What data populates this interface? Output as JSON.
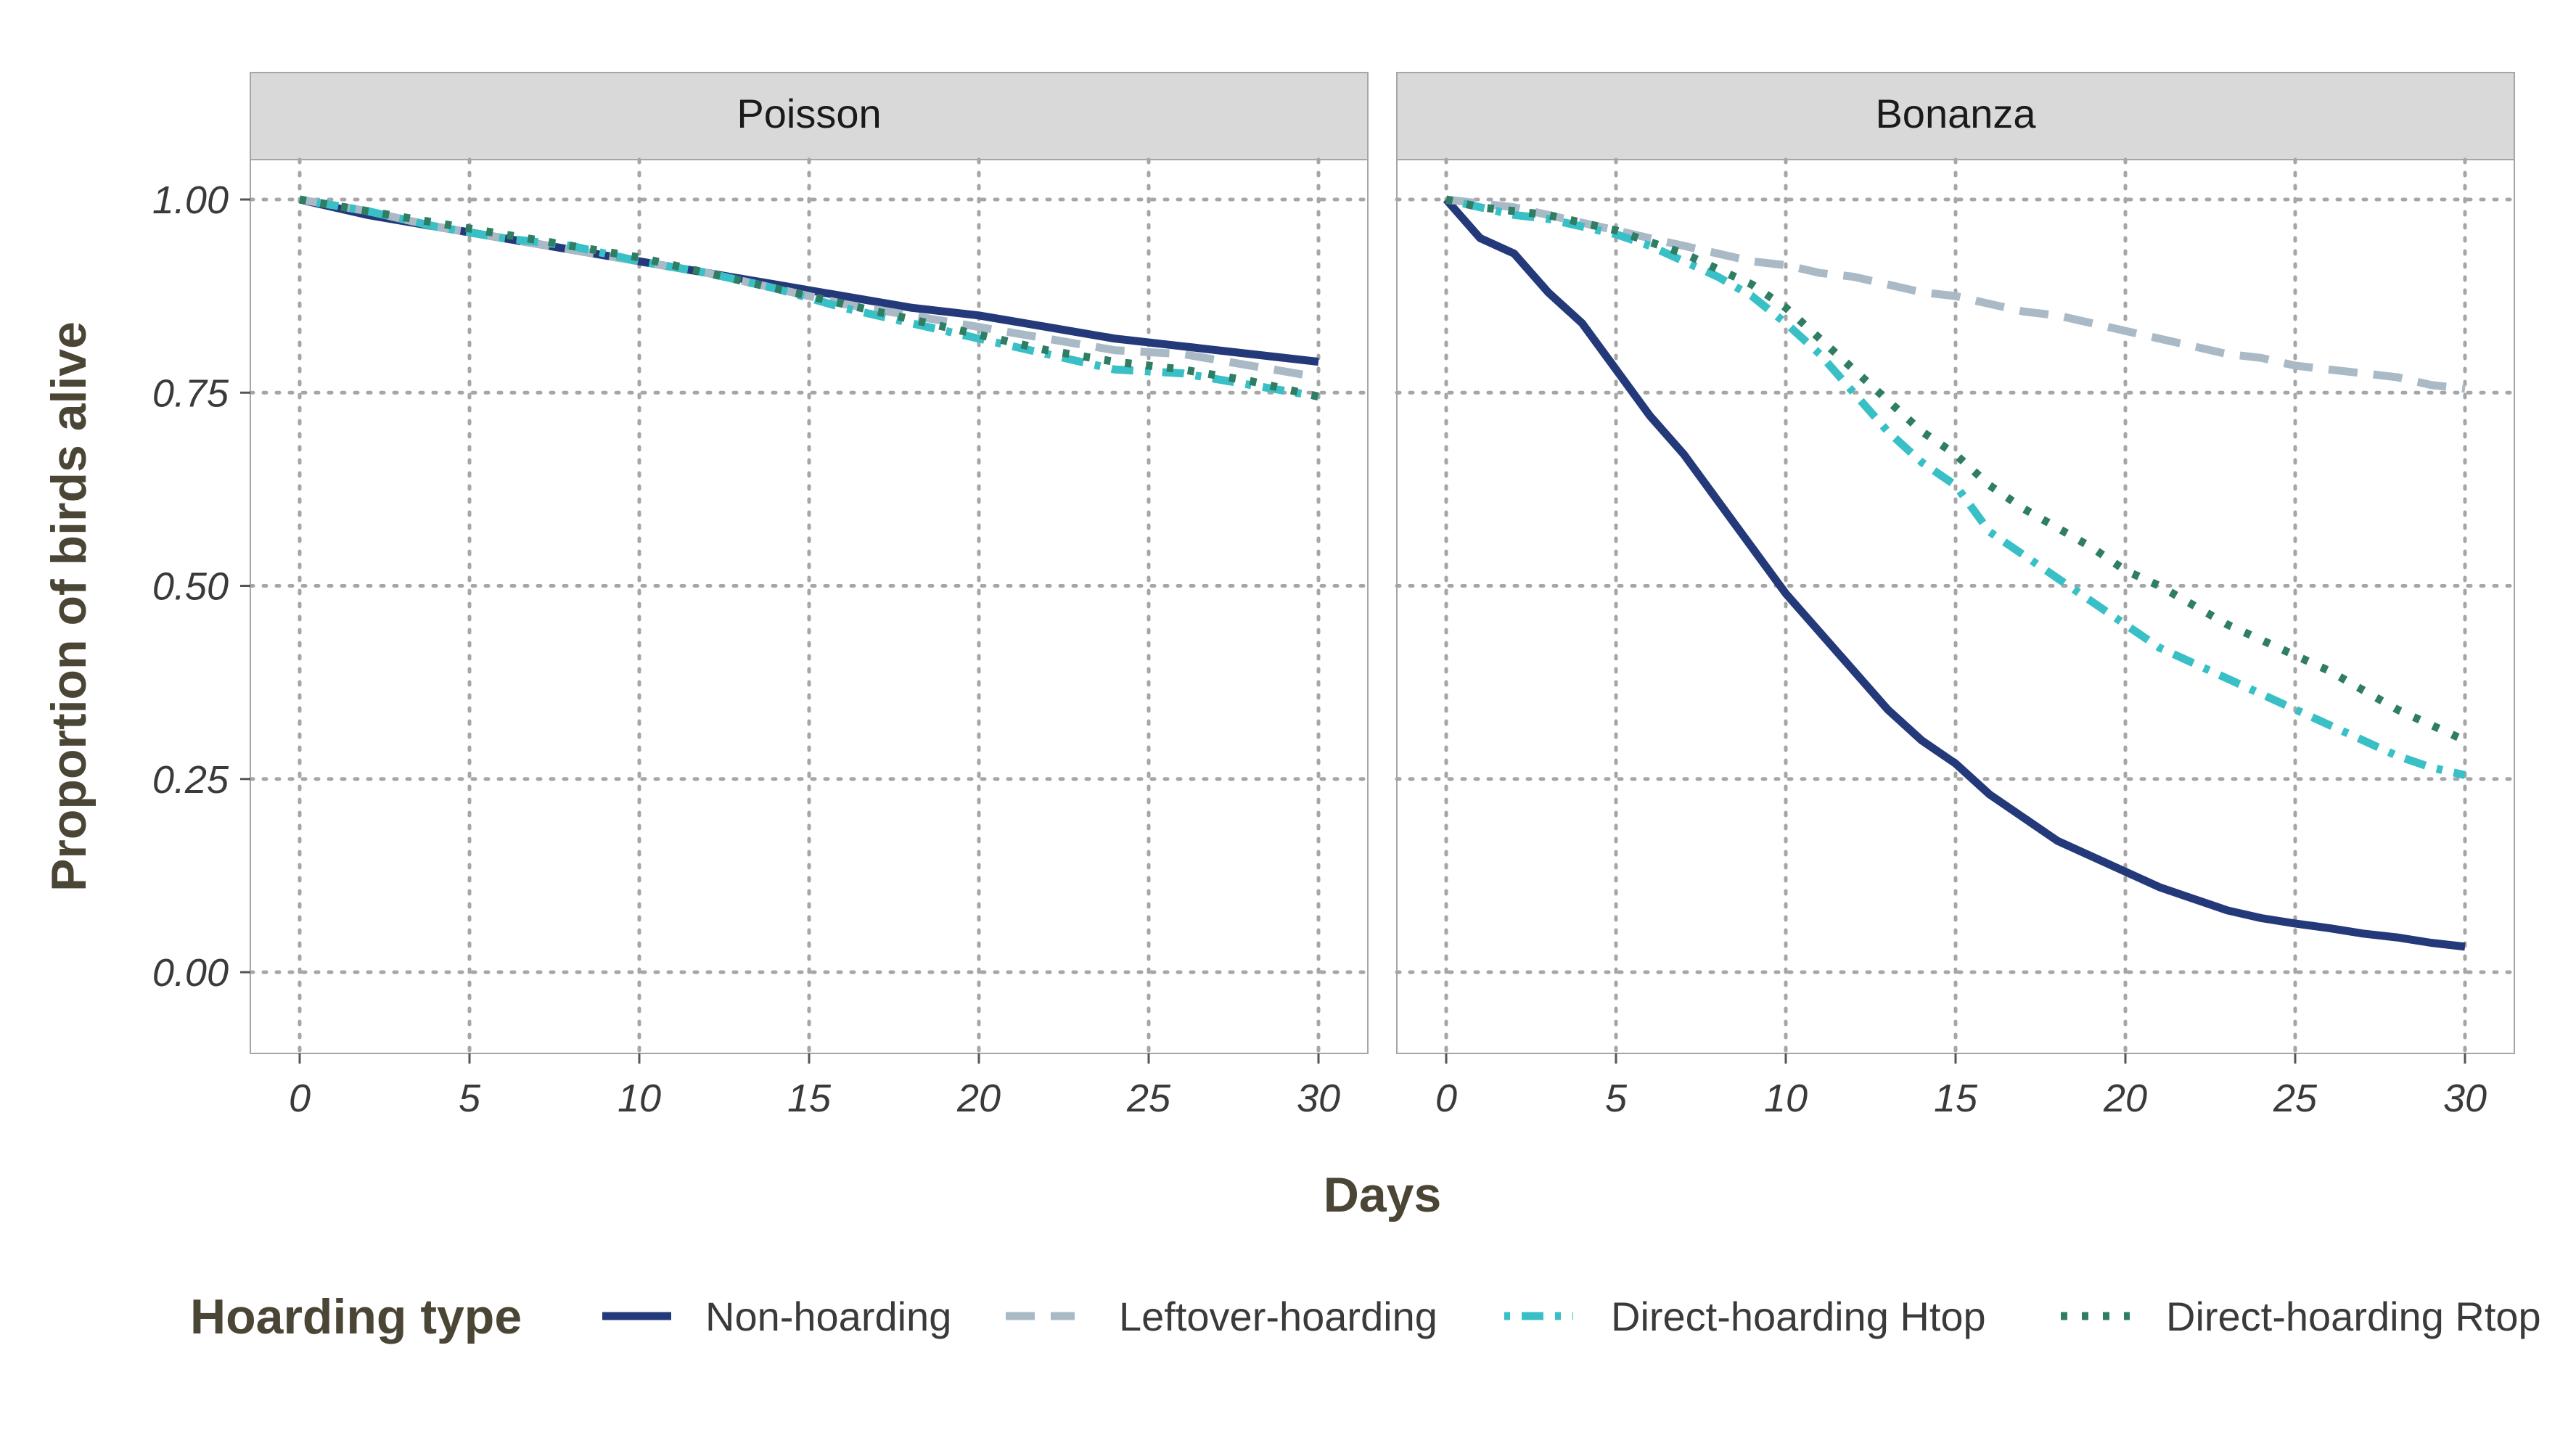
{
  "chart_data": {
    "type": "line",
    "xlabel": "Days",
    "ylabel": "Proportion of birds alive",
    "xlim": [
      0,
      30
    ],
    "ylim": [
      0,
      1
    ],
    "xticks": [
      "0",
      "5",
      "10",
      "15",
      "20",
      "25",
      "30"
    ],
    "yticks": [
      "0.00",
      "0.25",
      "0.50",
      "0.75",
      "1.00"
    ],
    "grid": "dotted",
    "legend": {
      "title": "Hoarding type",
      "position": "bottom",
      "entries": [
        "Non-hoarding",
        "Leftover-hoarding",
        "Direct-hoarding Htop",
        "Direct-hoarding Rtop"
      ]
    },
    "colors": {
      "Non-hoarding": "#24397a",
      "Leftover-hoarding": "#a9bac6",
      "Direct-hoarding Htop": "#38c0c6",
      "Direct-hoarding Rtop": "#2f7d63"
    },
    "panels": [
      {
        "strip": "Poisson",
        "x": [
          0,
          2,
          4,
          6,
          8,
          10,
          12,
          14,
          16,
          18,
          20,
          22,
          24,
          26,
          28,
          30
        ],
        "series": [
          {
            "name": "Non-hoarding",
            "values": [
              1.0,
              0.98,
              0.965,
              0.95,
              0.935,
              0.92,
              0.905,
              0.89,
              0.875,
              0.86,
              0.85,
              0.835,
              0.82,
              0.81,
              0.8,
              0.79
            ]
          },
          {
            "name": "Leftover-hoarding",
            "values": [
              1.0,
              0.985,
              0.965,
              0.95,
              0.935,
              0.92,
              0.905,
              0.885,
              0.865,
              0.85,
              0.835,
              0.82,
              0.805,
              0.8,
              0.785,
              0.77
            ]
          },
          {
            "name": "Direct-hoarding Htop",
            "values": [
              1.0,
              0.985,
              0.965,
              0.95,
              0.94,
              0.92,
              0.905,
              0.885,
              0.86,
              0.84,
              0.82,
              0.8,
              0.78,
              0.775,
              0.76,
              0.745
            ]
          },
          {
            "name": "Direct-hoarding Rtop",
            "values": [
              1.0,
              0.985,
              0.97,
              0.955,
              0.94,
              0.925,
              0.905,
              0.885,
              0.865,
              0.845,
              0.825,
              0.805,
              0.79,
              0.78,
              0.765,
              0.745
            ]
          }
        ]
      },
      {
        "strip": "Bonanza",
        "x": [
          0,
          1,
          2,
          3,
          4,
          5,
          6,
          7,
          8,
          9,
          10,
          11,
          12,
          13,
          14,
          15,
          16,
          17,
          18,
          19,
          20,
          21,
          22,
          23,
          24,
          25,
          26,
          27,
          28,
          29,
          30
        ],
        "series": [
          {
            "name": "Non-hoarding",
            "values": [
              1.0,
              0.95,
              0.93,
              0.88,
              0.84,
              0.78,
              0.72,
              0.67,
              0.61,
              0.55,
              0.49,
              0.44,
              0.39,
              0.34,
              0.3,
              0.27,
              0.23,
              0.2,
              0.17,
              0.15,
              0.13,
              0.11,
              0.095,
              0.08,
              0.07,
              0.063,
              0.057,
              0.05,
              0.045,
              0.038,
              0.033
            ]
          },
          {
            "name": "Leftover-hoarding",
            "values": [
              1.0,
              0.995,
              0.99,
              0.98,
              0.97,
              0.96,
              0.95,
              0.94,
              0.93,
              0.92,
              0.915,
              0.905,
              0.9,
              0.89,
              0.88,
              0.875,
              0.865,
              0.855,
              0.85,
              0.84,
              0.83,
              0.82,
              0.81,
              0.8,
              0.795,
              0.785,
              0.78,
              0.775,
              0.77,
              0.76,
              0.755
            ]
          },
          {
            "name": "Direct-hoarding Htop",
            "values": [
              1.0,
              0.99,
              0.98,
              0.975,
              0.965,
              0.955,
              0.94,
              0.92,
              0.9,
              0.875,
              0.84,
              0.8,
              0.75,
              0.7,
              0.66,
              0.63,
              0.57,
              0.54,
              0.51,
              0.48,
              0.45,
              0.42,
              0.4,
              0.38,
              0.36,
              0.34,
              0.32,
              0.3,
              0.28,
              0.265,
              0.255
            ]
          },
          {
            "name": "Direct-hoarding Rtop",
            "values": [
              1.0,
              0.99,
              0.985,
              0.98,
              0.97,
              0.96,
              0.945,
              0.93,
              0.91,
              0.89,
              0.86,
              0.82,
              0.78,
              0.74,
              0.7,
              0.67,
              0.63,
              0.6,
              0.575,
              0.55,
              0.52,
              0.5,
              0.475,
              0.45,
              0.43,
              0.41,
              0.39,
              0.365,
              0.34,
              0.32,
              0.3
            ]
          }
        ]
      }
    ]
  }
}
